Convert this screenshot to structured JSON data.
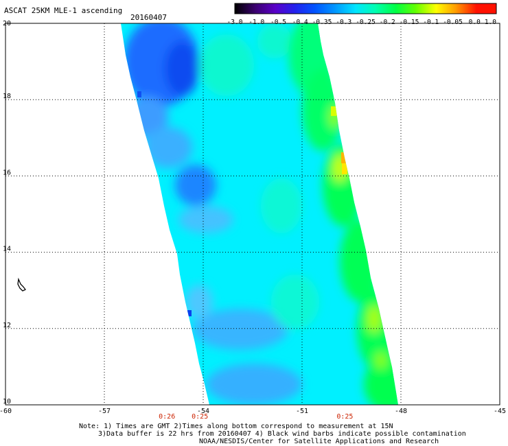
{
  "header": {
    "title": "ASCAT 25KM MLE-1 ascending",
    "date": "20160407"
  },
  "colorbar": {
    "labels": [
      "-3.0",
      "-1.0",
      "-0.5",
      "-0.4",
      "-0.35",
      "-0.3",
      "-0.25",
      "-0.2",
      "-0.15",
      "-0.1",
      "-0.05",
      "0.0",
      "1.0"
    ],
    "colors": [
      "#000000",
      "#3a006e",
      "#5a00c8",
      "#2222ee",
      "#0055ff",
      "#0099ff",
      "#00e5ff",
      "#00ffb0",
      "#00ff44",
      "#66ff00",
      "#ffff00",
      "#ff9900",
      "#ff1100"
    ]
  },
  "map": {
    "lon_labels": [
      "-60",
      "-57",
      "-54",
      "-51",
      "-48",
      "-45"
    ],
    "lat_labels": [
      "20",
      "18",
      "16",
      "14",
      "12",
      "10"
    ],
    "lon_range": [
      -60,
      -45
    ],
    "lat_range": [
      10,
      20
    ],
    "grid": "dotted",
    "time_labels": [
      {
        "text": "0:26",
        "lon": -55.1
      },
      {
        "text": "0:25",
        "lon": -54.1
      },
      {
        "text": "0:25",
        "lon": -49.7
      }
    ],
    "time_color": "#cc2200"
  },
  "notes": {
    "line1": "Note: 1) Times are GMT 2)Times along bottom correspond to measurement at 15N",
    "line2": "3)Data buffer is 22 hrs from 20160407 4) Black wind barbs indicate possible contamination",
    "line3": "NOAA/NESDIS/Center for Satellite Applications and Research"
  }
}
